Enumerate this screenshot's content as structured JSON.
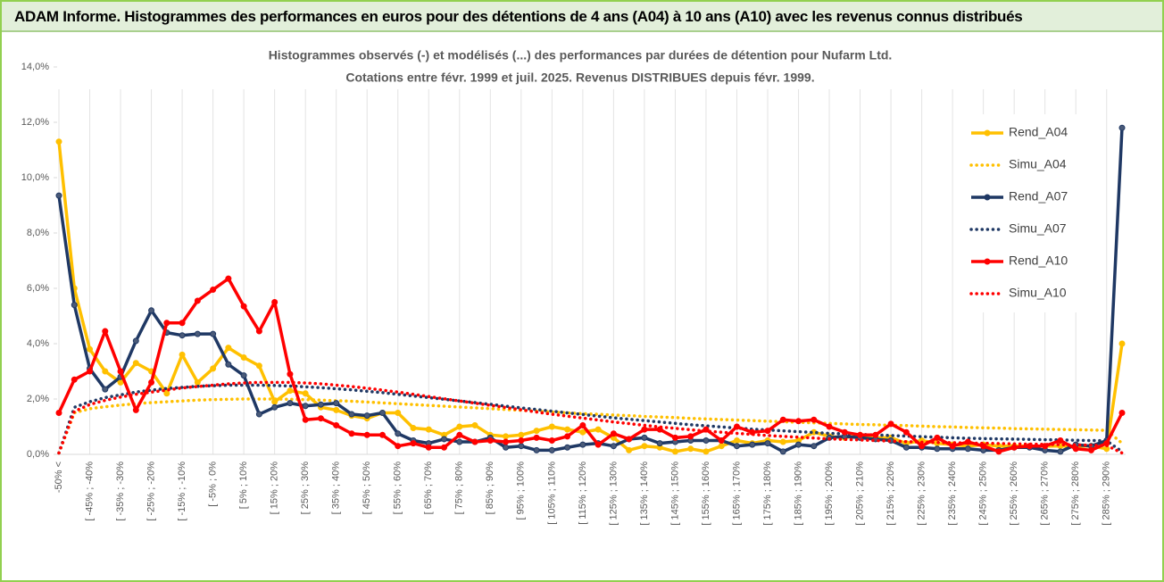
{
  "header": "ADAM Informe. Histogrammes des performances en euros pour des détentions de 4 ans (A04) à 10 ans (A10) avec les revenus connus distribués",
  "chart_data": {
    "type": "line",
    "title": "Histogrammes observés (-) et modélisés (...) des performances par durées de détention pour Nufarm Ltd.",
    "subtitle": "Cotations entre févr. 1999 et juil. 2025. Revenus DISTRIBUES depuis févr. 1999.",
    "categories": [
      "-50% <",
      null,
      "[ -45% ; -40%",
      null,
      "[ -35% ; -30%",
      null,
      "[ -25% ; -20%",
      null,
      "[ -15% ; -10%",
      null,
      "[ -5% ; 0%",
      null,
      "[ 5% ; 10%",
      null,
      "[ 15% ; 20%",
      null,
      "[ 25% ; 30%",
      null,
      "[ 35% ; 40%",
      null,
      "[ 45% ; 50%",
      null,
      "[ 55% ; 60%",
      null,
      "[ 65% ; 70%",
      null,
      "[ 75% ; 80%",
      null,
      "[ 85% ; 90%",
      null,
      "[ 95% ; 100%",
      null,
      "[ 105% ; 110%",
      null,
      "[ 115% ; 120%",
      null,
      "[ 125% ; 130%",
      null,
      "[ 135% ; 140%",
      null,
      "[ 145% ; 150%",
      null,
      "[ 155% ; 160%",
      null,
      "[ 165% ; 170%",
      null,
      "[ 175% ; 180%",
      null,
      "[ 185% ; 190%",
      null,
      "[ 195% ; 200%",
      null,
      "[ 205% ; 210%",
      null,
      "[ 215% ; 220%",
      null,
      "[ 225% ; 230%",
      null,
      "[ 235% ; 240%",
      null,
      "[ 245% ; 250%",
      null,
      "[ 255% ; 260%",
      null,
      "[ 265% ; 270%",
      null,
      "[ 275% ; 280%",
      null,
      "[ 285% ; 290%",
      null
    ],
    "ylim": [
      0,
      14
    ],
    "yticks": [
      {
        "value": 0,
        "label": "0,0%"
      },
      {
        "value": 2,
        "label": "2,0%"
      },
      {
        "value": 4,
        "label": "4,0%"
      },
      {
        "value": 6,
        "label": "6,0%"
      },
      {
        "value": 8,
        "label": "8,0%"
      },
      {
        "value": 10,
        "label": "10,0%"
      },
      {
        "value": 12,
        "label": "12,0%"
      },
      {
        "value": 14,
        "label": "14,0%"
      }
    ],
    "xgrid": true,
    "legend": "right",
    "series": [
      {
        "name": "Rend_A04",
        "color": "#FFC000",
        "style": "solid",
        "marker": true,
        "values": [
          11.3,
          6.0,
          3.8,
          3.0,
          2.6,
          3.3,
          3.0,
          2.2,
          3.6,
          2.6,
          3.1,
          3.85,
          3.5,
          3.2,
          1.9,
          2.3,
          2.2,
          1.7,
          1.6,
          1.4,
          1.3,
          1.5,
          1.5,
          0.95,
          0.9,
          0.7,
          1.0,
          1.05,
          0.7,
          0.65,
          0.7,
          0.85,
          1.0,
          0.9,
          0.8,
          0.9,
          0.6,
          0.15,
          0.3,
          0.25,
          0.1,
          0.2,
          0.1,
          0.3,
          0.5,
          0.4,
          0.5,
          0.45,
          0.5,
          0.8,
          0.65,
          0.6,
          0.7,
          0.6,
          0.6,
          0.4,
          0.5,
          0.4,
          0.35,
          0.3,
          0.35,
          0.3,
          0.3,
          0.3,
          0.3,
          0.3,
          0.3,
          0.3,
          0.2,
          4.0
        ]
      },
      {
        "name": "Simu_A04",
        "color": "#FFC000",
        "style": "dotted",
        "marker": false,
        "values": [
          0.05,
          1.5,
          1.65,
          1.72,
          1.78,
          1.83,
          1.87,
          1.9,
          1.93,
          1.96,
          1.98,
          1.99,
          2.0,
          2.0,
          2.0,
          1.99,
          1.98,
          1.96,
          1.94,
          1.92,
          1.89,
          1.86,
          1.83,
          1.8,
          1.77,
          1.74,
          1.71,
          1.68,
          1.65,
          1.62,
          1.59,
          1.56,
          1.53,
          1.5,
          1.47,
          1.45,
          1.42,
          1.4,
          1.37,
          1.35,
          1.33,
          1.3,
          1.28,
          1.26,
          1.24,
          1.22,
          1.2,
          1.18,
          1.16,
          1.14,
          1.12,
          1.1,
          1.08,
          1.07,
          1.05,
          1.04,
          1.02,
          1.0,
          0.99,
          0.97,
          0.96,
          0.95,
          0.93,
          0.92,
          0.91,
          0.9,
          0.89,
          0.88,
          0.87,
          0.4
        ]
      },
      {
        "name": "Rend_A07",
        "color": "#1F3864",
        "style": "solid",
        "marker": true,
        "values": [
          9.35,
          5.4,
          3.1,
          2.35,
          2.8,
          4.1,
          5.2,
          4.4,
          4.3,
          4.35,
          4.35,
          3.25,
          2.85,
          1.45,
          1.7,
          1.85,
          1.75,
          1.8,
          1.85,
          1.45,
          1.4,
          1.5,
          0.75,
          0.5,
          0.4,
          0.55,
          0.45,
          0.45,
          0.6,
          0.25,
          0.3,
          0.15,
          0.15,
          0.25,
          0.35,
          0.4,
          0.3,
          0.55,
          0.6,
          0.4,
          0.45,
          0.5,
          0.5,
          0.5,
          0.3,
          0.35,
          0.4,
          0.1,
          0.35,
          0.3,
          0.6,
          0.65,
          0.6,
          0.55,
          0.5,
          0.25,
          0.25,
          0.2,
          0.2,
          0.2,
          0.15,
          0.15,
          0.25,
          0.25,
          0.15,
          0.1,
          0.35,
          0.3,
          0.5,
          11.8
        ]
      },
      {
        "name": "Simu_A07",
        "color": "#1F3864",
        "style": "dotted",
        "marker": false,
        "values": [
          0.05,
          1.7,
          1.9,
          2.05,
          2.15,
          2.25,
          2.32,
          2.38,
          2.42,
          2.46,
          2.48,
          2.5,
          2.5,
          2.5,
          2.49,
          2.47,
          2.44,
          2.41,
          2.37,
          2.33,
          2.28,
          2.23,
          2.17,
          2.11,
          2.05,
          1.99,
          1.93,
          1.87,
          1.81,
          1.74,
          1.68,
          1.62,
          1.56,
          1.5,
          1.44,
          1.38,
          1.32,
          1.27,
          1.22,
          1.17,
          1.12,
          1.07,
          1.03,
          0.99,
          0.95,
          0.91,
          0.88,
          0.85,
          0.82,
          0.79,
          0.76,
          0.74,
          0.72,
          0.7,
          0.68,
          0.66,
          0.64,
          0.62,
          0.6,
          0.58,
          0.57,
          0.56,
          0.55,
          0.54,
          0.53,
          0.52,
          0.51,
          0.5,
          0.49,
          0.1
        ]
      },
      {
        "name": "Rend_A10",
        "color": "#FF0000",
        "style": "solid",
        "marker": true,
        "values": [
          1.5,
          2.7,
          3.0,
          4.45,
          3.0,
          1.6,
          2.6,
          4.75,
          4.75,
          5.55,
          5.95,
          6.35,
          5.35,
          4.45,
          5.5,
          2.9,
          1.25,
          1.3,
          1.05,
          0.75,
          0.7,
          0.7,
          0.3,
          0.4,
          0.25,
          0.25,
          0.7,
          0.45,
          0.5,
          0.45,
          0.5,
          0.6,
          0.5,
          0.65,
          1.05,
          0.35,
          0.75,
          0.55,
          0.9,
          0.9,
          0.6,
          0.65,
          0.9,
          0.5,
          1.0,
          0.8,
          0.85,
          1.25,
          1.2,
          1.25,
          1.0,
          0.8,
          0.7,
          0.7,
          1.1,
          0.8,
          0.3,
          0.6,
          0.3,
          0.45,
          0.3,
          0.1,
          0.25,
          0.3,
          0.3,
          0.5,
          0.2,
          0.15,
          0.4,
          1.5
        ]
      },
      {
        "name": "Simu_A10",
        "color": "#FF0000",
        "style": "dotted",
        "marker": false,
        "values": [
          0.05,
          1.55,
          1.8,
          1.95,
          2.07,
          2.17,
          2.25,
          2.32,
          2.4,
          2.45,
          2.5,
          2.55,
          2.58,
          2.6,
          2.6,
          2.6,
          2.58,
          2.55,
          2.5,
          2.45,
          2.39,
          2.32,
          2.25,
          2.17,
          2.09,
          2.01,
          1.93,
          1.85,
          1.77,
          1.69,
          1.61,
          1.53,
          1.45,
          1.38,
          1.31,
          1.24,
          1.17,
          1.11,
          1.05,
          0.99,
          0.94,
          0.89,
          0.84,
          0.8,
          0.76,
          0.72,
          0.68,
          0.65,
          0.62,
          0.59,
          0.56,
          0.54,
          0.52,
          0.5,
          0.48,
          0.46,
          0.44,
          0.43,
          0.42,
          0.41,
          0.4,
          0.39,
          0.38,
          0.37,
          0.36,
          0.35,
          0.34,
          0.33,
          0.32,
          0.05
        ]
      }
    ]
  }
}
